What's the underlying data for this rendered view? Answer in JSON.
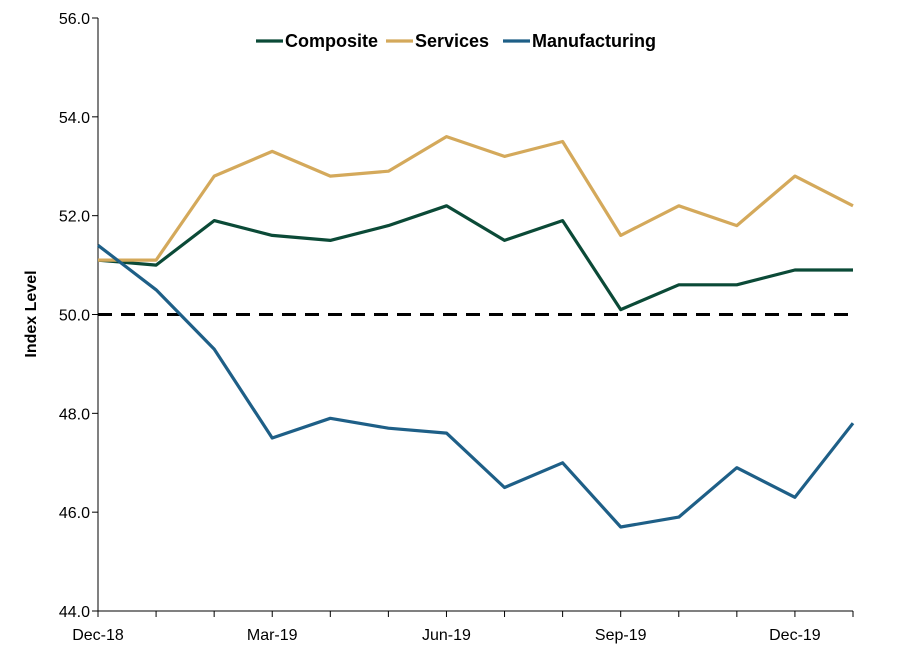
{
  "chart_data": {
    "type": "line",
    "title": "",
    "xlabel": "",
    "ylabel": "Index Level",
    "ylim": [
      44.0,
      56.0
    ],
    "yticks": [
      "44.0",
      "46.0",
      "48.0",
      "50.0",
      "52.0",
      "54.0",
      "56.0"
    ],
    "grid": false,
    "legend_position": "top-center",
    "x": [
      "Dec-18",
      "Jan-19",
      "Feb-19",
      "Mar-19",
      "Apr-19",
      "May-19",
      "Jun-19",
      "Jul-19",
      "Aug-19",
      "Sep-19",
      "Oct-19",
      "Nov-19",
      "Dec-19",
      "Jan-20"
    ],
    "xtick_labels": [
      "Dec-18",
      "Mar-19",
      "Jun-19",
      "Sep-19",
      "Dec-19"
    ],
    "reference_line": {
      "value": 50.0,
      "style": "dashed",
      "color": "#000000"
    },
    "series": [
      {
        "name": "Composite",
        "color": "#0b4a37",
        "values": [
          51.1,
          51.0,
          51.9,
          51.6,
          51.5,
          51.8,
          52.2,
          51.5,
          51.9,
          50.1,
          50.6,
          50.6,
          50.9,
          50.9
        ]
      },
      {
        "name": "Services",
        "color": "#d4a95b",
        "values": [
          51.1,
          51.1,
          52.8,
          53.3,
          52.8,
          52.9,
          53.6,
          53.2,
          53.5,
          51.6,
          52.2,
          51.8,
          52.8,
          52.2
        ]
      },
      {
        "name": "Manufacturing",
        "color": "#1e5f87",
        "values": [
          51.4,
          50.5,
          49.3,
          47.5,
          47.9,
          47.7,
          47.6,
          46.5,
          47.0,
          45.7,
          45.9,
          46.9,
          46.3,
          47.8
        ]
      }
    ]
  }
}
